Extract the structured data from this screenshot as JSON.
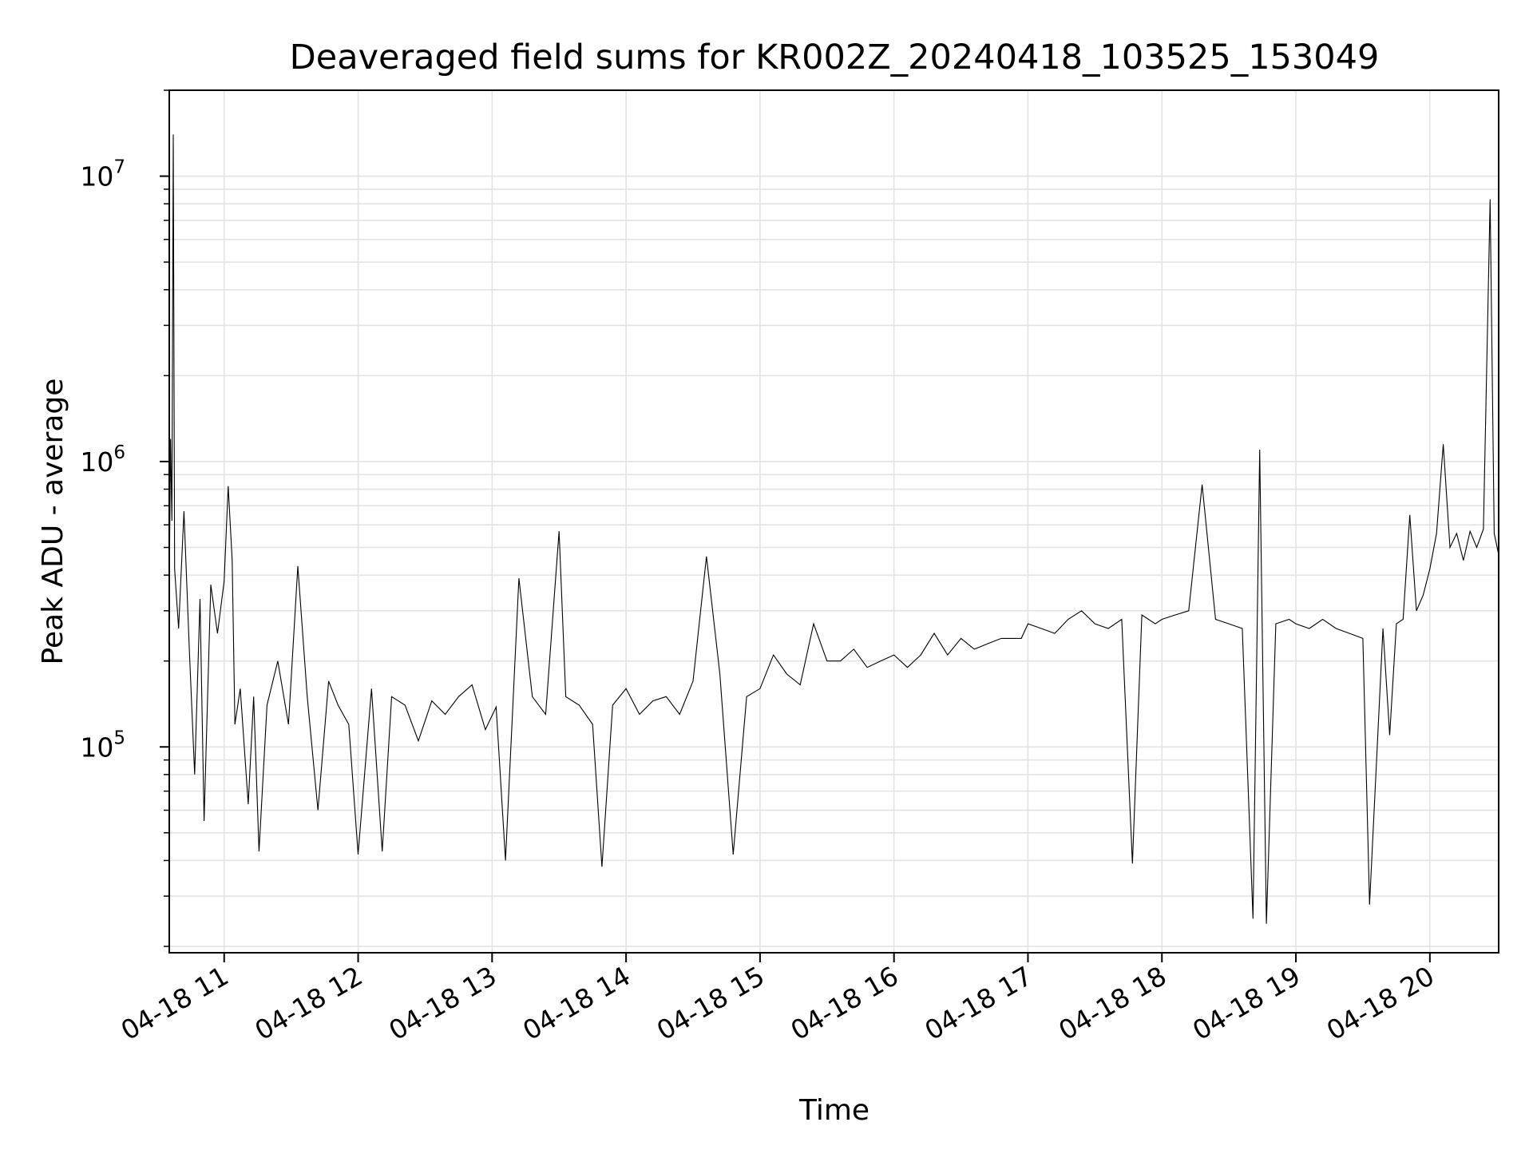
{
  "chart_data": {
    "type": "line",
    "title": "Deaveraged field sums for KR002Z_20240418_103525_153049",
    "xlabel": "Time",
    "ylabel": "Peak ADU - average",
    "x_type": "time",
    "xlim": [
      "04-18 10:35:25",
      "04-18 20:30:49"
    ],
    "yscale": "log",
    "ylim": [
      19000,
      20000000
    ],
    "grid": true,
    "legend": "none",
    "line_color": "#000000",
    "grid_color": "#e3e3e3",
    "x_ticks": [
      "04-18 11",
      "04-18 12",
      "04-18 13",
      "04-18 14",
      "04-18 15",
      "04-18 16",
      "04-18 17",
      "04-18 18",
      "04-18 19",
      "04-18 20"
    ],
    "y_ticks": [
      {
        "value": 100000,
        "base": "10",
        "exp": "5"
      },
      {
        "value": 1000000,
        "base": "10",
        "exp": "6"
      },
      {
        "value": 10000000,
        "base": "10",
        "exp": "7"
      }
    ],
    "series": [
      {
        "x_unit": "hour of 04-18",
        "y_unit": "ADU",
        "points": [
          [
            10.59,
            360000
          ],
          [
            10.6,
            1200000
          ],
          [
            10.61,
            620000
          ],
          [
            10.62,
            14000000
          ],
          [
            10.63,
            420000
          ],
          [
            10.66,
            260000
          ],
          [
            10.7,
            670000
          ],
          [
            10.74,
            220000
          ],
          [
            10.78,
            80000
          ],
          [
            10.82,
            330000
          ],
          [
            10.85,
            55000
          ],
          [
            10.9,
            370000
          ],
          [
            10.95,
            250000
          ],
          [
            11.0,
            380000
          ],
          [
            11.03,
            820000
          ],
          [
            11.06,
            450000
          ],
          [
            11.08,
            120000
          ],
          [
            11.12,
            160000
          ],
          [
            11.18,
            63000
          ],
          [
            11.22,
            150000
          ],
          [
            11.26,
            43000
          ],
          [
            11.32,
            140000
          ],
          [
            11.4,
            200000
          ],
          [
            11.48,
            120000
          ],
          [
            11.55,
            430000
          ],
          [
            11.62,
            150000
          ],
          [
            11.7,
            60000
          ],
          [
            11.78,
            170000
          ],
          [
            11.85,
            140000
          ],
          [
            11.93,
            120000
          ],
          [
            12.0,
            42000
          ],
          [
            12.1,
            160000
          ],
          [
            12.18,
            43000
          ],
          [
            12.25,
            150000
          ],
          [
            12.35,
            140000
          ],
          [
            12.45,
            105000
          ],
          [
            12.55,
            145000
          ],
          [
            12.65,
            130000
          ],
          [
            12.75,
            150000
          ],
          [
            12.85,
            165000
          ],
          [
            12.95,
            115000
          ],
          [
            13.03,
            138000
          ],
          [
            13.1,
            40000
          ],
          [
            13.2,
            390000
          ],
          [
            13.3,
            150000
          ],
          [
            13.4,
            130000
          ],
          [
            13.5,
            570000
          ],
          [
            13.55,
            150000
          ],
          [
            13.65,
            140000
          ],
          [
            13.75,
            120000
          ],
          [
            13.82,
            38000
          ],
          [
            13.9,
            140000
          ],
          [
            14.0,
            160000
          ],
          [
            14.1,
            130000
          ],
          [
            14.2,
            145000
          ],
          [
            14.3,
            150000
          ],
          [
            14.4,
            130000
          ],
          [
            14.5,
            170000
          ],
          [
            14.6,
            465000
          ],
          [
            14.7,
            180000
          ],
          [
            14.8,
            42000
          ],
          [
            14.9,
            150000
          ],
          [
            15.0,
            160000
          ],
          [
            15.1,
            210000
          ],
          [
            15.2,
            180000
          ],
          [
            15.3,
            165000
          ],
          [
            15.4,
            270000
          ],
          [
            15.5,
            200000
          ],
          [
            15.6,
            200000
          ],
          [
            15.7,
            220000
          ],
          [
            15.8,
            190000
          ],
          [
            15.9,
            200000
          ],
          [
            16.0,
            210000
          ],
          [
            16.1,
            190000
          ],
          [
            16.2,
            210000
          ],
          [
            16.3,
            250000
          ],
          [
            16.4,
            210000
          ],
          [
            16.5,
            240000
          ],
          [
            16.6,
            220000
          ],
          [
            16.7,
            230000
          ],
          [
            16.8,
            240000
          ],
          [
            16.95,
            240000
          ],
          [
            17.0,
            270000
          ],
          [
            17.1,
            260000
          ],
          [
            17.2,
            250000
          ],
          [
            17.3,
            280000
          ],
          [
            17.4,
            300000
          ],
          [
            17.5,
            270000
          ],
          [
            17.6,
            260000
          ],
          [
            17.7,
            280000
          ],
          [
            17.78,
            39000
          ],
          [
            17.85,
            290000
          ],
          [
            17.95,
            270000
          ],
          [
            18.0,
            280000
          ],
          [
            18.1,
            290000
          ],
          [
            18.2,
            300000
          ],
          [
            18.3,
            830000
          ],
          [
            18.4,
            280000
          ],
          [
            18.5,
            270000
          ],
          [
            18.6,
            260000
          ],
          [
            18.68,
            25000
          ],
          [
            18.73,
            1100000
          ],
          [
            18.78,
            24000
          ],
          [
            18.85,
            270000
          ],
          [
            18.95,
            280000
          ],
          [
            19.0,
            270000
          ],
          [
            19.1,
            260000
          ],
          [
            19.2,
            280000
          ],
          [
            19.3,
            260000
          ],
          [
            19.4,
            250000
          ],
          [
            19.5,
            240000
          ],
          [
            19.55,
            28000
          ],
          [
            19.65,
            260000
          ],
          [
            19.7,
            110000
          ],
          [
            19.75,
            270000
          ],
          [
            19.8,
            280000
          ],
          [
            19.85,
            650000
          ],
          [
            19.9,
            300000
          ],
          [
            19.95,
            340000
          ],
          [
            20.0,
            420000
          ],
          [
            20.05,
            560000
          ],
          [
            20.1,
            1150000
          ],
          [
            20.15,
            500000
          ],
          [
            20.2,
            560000
          ],
          [
            20.25,
            450000
          ],
          [
            20.3,
            570000
          ],
          [
            20.35,
            500000
          ],
          [
            20.4,
            580000
          ],
          [
            20.45,
            8300000
          ],
          [
            20.48,
            560000
          ],
          [
            20.51,
            480000
          ]
        ]
      }
    ]
  }
}
